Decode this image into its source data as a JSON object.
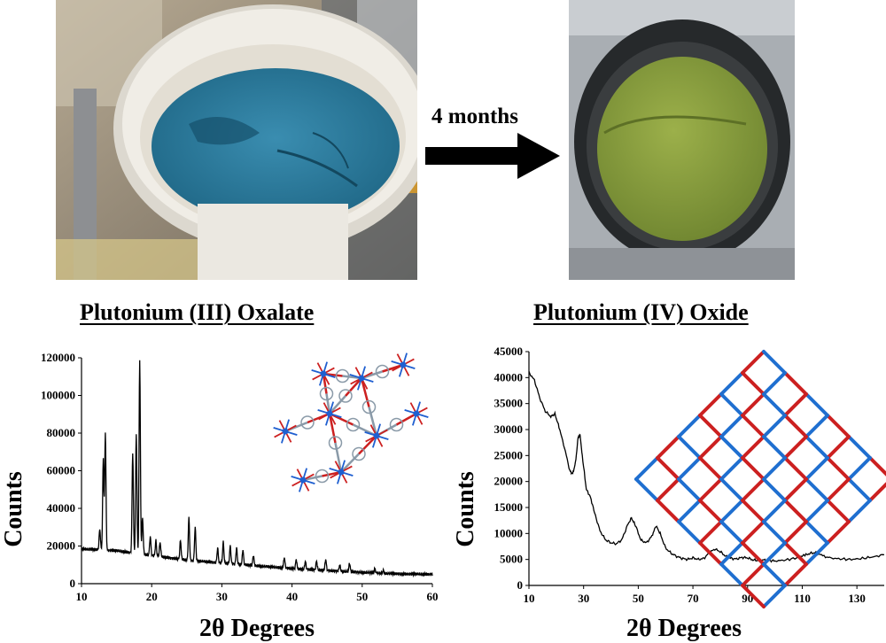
{
  "header": {
    "arrow_label": "4 months"
  },
  "photos": {
    "left_colors": {
      "sample": "#2e7f9e",
      "crucible": "#ece9e2",
      "background": "#8c8170"
    },
    "right_colors": {
      "sample": "#8fa33d",
      "ring": "#26292b",
      "background": "#a9aeb3"
    }
  },
  "chart_data": [
    {
      "type": "line",
      "title": "Plutonium (III) Oxalate",
      "xlabel": "2θ Degrees",
      "ylabel": "Counts",
      "xlim": [
        10,
        60
      ],
      "ylim": [
        0,
        120000
      ],
      "xticks": [
        "10",
        "20",
        "30",
        "40",
        "50",
        "60"
      ],
      "yticks": [
        "0",
        "20000",
        "40000",
        "60000",
        "80000",
        "100000",
        "120000"
      ],
      "line_color": "#000000",
      "baseline": [
        [
          10,
          18500
        ],
        [
          15,
          17500
        ],
        [
          20,
          15000
        ],
        [
          25,
          12500
        ],
        [
          30,
          11000
        ],
        [
          35,
          9500
        ],
        [
          40,
          8000
        ],
        [
          45,
          7000
        ],
        [
          50,
          6000
        ],
        [
          55,
          5200
        ],
        [
          60,
          5000
        ]
      ],
      "peaks": [
        [
          12.6,
          29000
        ],
        [
          13.1,
          67000
        ],
        [
          13.4,
          80000
        ],
        [
          17.3,
          70000
        ],
        [
          17.8,
          80000
        ],
        [
          18.3,
          119000
        ],
        [
          18.7,
          35000
        ],
        [
          19.8,
          25000
        ],
        [
          20.6,
          23000
        ],
        [
          21.2,
          22000
        ],
        [
          24.1,
          23000
        ],
        [
          25.3,
          35000
        ],
        [
          26.2,
          30000
        ],
        [
          29.4,
          19000
        ],
        [
          30.2,
          22000
        ],
        [
          31.2,
          20000
        ],
        [
          32.1,
          19000
        ],
        [
          33.0,
          18000
        ],
        [
          34.5,
          15000
        ],
        [
          38.9,
          14000
        ],
        [
          40.6,
          13000
        ],
        [
          41.9,
          12000
        ],
        [
          43.5,
          12000
        ],
        [
          44.8,
          13000
        ],
        [
          46.8,
          10000
        ],
        [
          48.2,
          11000
        ],
        [
          51.8,
          8000
        ],
        [
          53.0,
          7000
        ]
      ],
      "molecule_colors": {
        "metal": "#1f5fd0",
        "oxygen": "#cc2020",
        "carbon": "#8a9aa8"
      }
    },
    {
      "type": "line",
      "title": "Plutonium (IV) Oxide",
      "xlabel": "2θ Degrees",
      "ylabel": "Counts",
      "xlim": [
        10,
        140
      ],
      "ylim": [
        0,
        45000
      ],
      "xticks": [
        "10",
        "30",
        "50",
        "70",
        "90",
        "110",
        "130"
      ],
      "yticks": [
        "0",
        "5000",
        "10000",
        "15000",
        "20000",
        "25000",
        "30000",
        "35000",
        "40000",
        "45000"
      ],
      "line_color": "#000000",
      "points": [
        [
          10,
          41000
        ],
        [
          12,
          39500
        ],
        [
          14,
          36000
        ],
        [
          16,
          33500
        ],
        [
          18,
          32500
        ],
        [
          19.5,
          33000
        ],
        [
          21,
          30500
        ],
        [
          23,
          26500
        ],
        [
          25,
          22000
        ],
        [
          26,
          21500
        ],
        [
          27,
          23500
        ],
        [
          28,
          28500
        ],
        [
          28.7,
          29000
        ],
        [
          29.5,
          25000
        ],
        [
          31,
          18500
        ],
        [
          32.5,
          17000
        ],
        [
          34,
          14000
        ],
        [
          36,
          10500
        ],
        [
          38,
          8800
        ],
        [
          40,
          8200
        ],
        [
          42,
          8000
        ],
        [
          44,
          8800
        ],
        [
          46,
          11500
        ],
        [
          47.5,
          13000
        ],
        [
          49,
          11500
        ],
        [
          51,
          8700
        ],
        [
          53,
          8200
        ],
        [
          55,
          9500
        ],
        [
          56.5,
          11500
        ],
        [
          58,
          10000
        ],
        [
          60,
          7200
        ],
        [
          62,
          6200
        ],
        [
          64,
          5600
        ],
        [
          66,
          5200
        ],
        [
          68,
          5000
        ],
        [
          70,
          5300
        ],
        [
          72,
          5000
        ],
        [
          74,
          5200
        ],
        [
          76,
          6300
        ],
        [
          78,
          7000
        ],
        [
          80,
          6500
        ],
        [
          82,
          5600
        ],
        [
          84,
          5200
        ],
        [
          86,
          5100
        ],
        [
          88,
          5400
        ],
        [
          90,
          5300
        ],
        [
          92,
          4900
        ],
        [
          94,
          4800
        ],
        [
          96,
          4900
        ],
        [
          98,
          4800
        ],
        [
          100,
          4700
        ],
        [
          104,
          4900
        ],
        [
          108,
          5300
        ],
        [
          111,
          5800
        ],
        [
          113,
          6200
        ],
        [
          115,
          6300
        ],
        [
          117,
          5800
        ],
        [
          120,
          5300
        ],
        [
          124,
          5100
        ],
        [
          128,
          5000
        ],
        [
          132,
          5200
        ],
        [
          136,
          5500
        ],
        [
          140,
          5900
        ]
      ],
      "lattice_colors": {
        "a": "#1f6fd0",
        "b": "#cc2020"
      }
    }
  ]
}
